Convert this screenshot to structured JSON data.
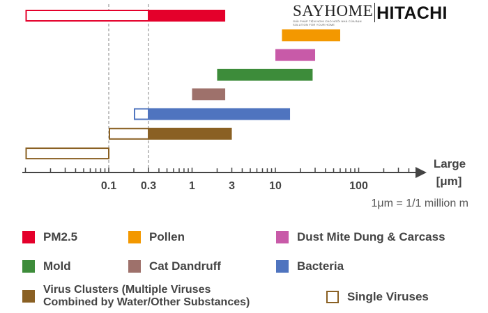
{
  "logo": {
    "say": "SAYHOME",
    "say_tagline_1": "GIẢI PHÁP TIỆN NGHI CHO NGÔI NHÀ CỦA BẠN",
    "say_tagline_2": "SOLUTION FOR YOUR HOME",
    "brand": "HITACHI"
  },
  "chart_data": {
    "type": "bar",
    "subtype": "horizontal-range",
    "x_scale": "log",
    "x_ticks": [
      0.1,
      0.3,
      1,
      3,
      10,
      100
    ],
    "x_tick_labels": [
      "0.1",
      "0.3",
      "1",
      "3",
      "10",
      "100"
    ],
    "xlim": [
      0.01,
      500
    ],
    "xlabel_line1": "Large",
    "xlabel_line2": "[μm]",
    "note": "1μm = 1/1 million m",
    "reference_lines": [
      0.1,
      0.3
    ],
    "bars": [
      {
        "name": "PM2.5",
        "color": "#e4002b",
        "solid": [
          0.3,
          2.5
        ],
        "hollow": [
          0.01,
          0.3
        ]
      },
      {
        "name": "Pollen",
        "color": "#f39800",
        "solid": [
          12,
          60
        ]
      },
      {
        "name": "Dust Mite Dung & Carcass",
        "color": "#c85aa8",
        "solid": [
          10,
          30
        ]
      },
      {
        "name": "Mold",
        "color": "#3d8c3a",
        "solid": [
          2,
          28
        ]
      },
      {
        "name": "Cat Dandruff",
        "color": "#9e716b",
        "solid": [
          1,
          2.5
        ]
      },
      {
        "name": "Bacteria",
        "color": "#4f74bf",
        "solid": [
          0.3,
          15
        ],
        "hollow": [
          0.2,
          0.3
        ]
      },
      {
        "name": "Virus Clusters",
        "color": "#8a6023",
        "solid": [
          0.3,
          3
        ],
        "hollow": [
          0.1,
          0.3
        ]
      },
      {
        "name": "Single Viruses",
        "color": "#8a6023",
        "hollow": [
          0.01,
          0.1
        ]
      }
    ]
  },
  "legend": [
    {
      "label": "PM2.5",
      "color": "#e4002b",
      "hollow": false
    },
    {
      "label": "Pollen",
      "color": "#f39800",
      "hollow": false
    },
    {
      "label": "Dust Mite Dung & Carcass",
      "color": "#c85aa8",
      "hollow": false
    },
    {
      "label": "Mold",
      "color": "#3d8c3a",
      "hollow": false
    },
    {
      "label": "Cat Dandruff",
      "color": "#9e716b",
      "hollow": false
    },
    {
      "label": "Bacteria",
      "color": "#4f74bf",
      "hollow": false
    },
    {
      "label": "Virus Clusters (Multiple Viruses",
      "label2": "Combined by Water/Other Substances)",
      "color": "#8a6023",
      "hollow": false
    },
    {
      "label": "Single Viruses",
      "color": "#8a6023",
      "hollow": true
    }
  ]
}
